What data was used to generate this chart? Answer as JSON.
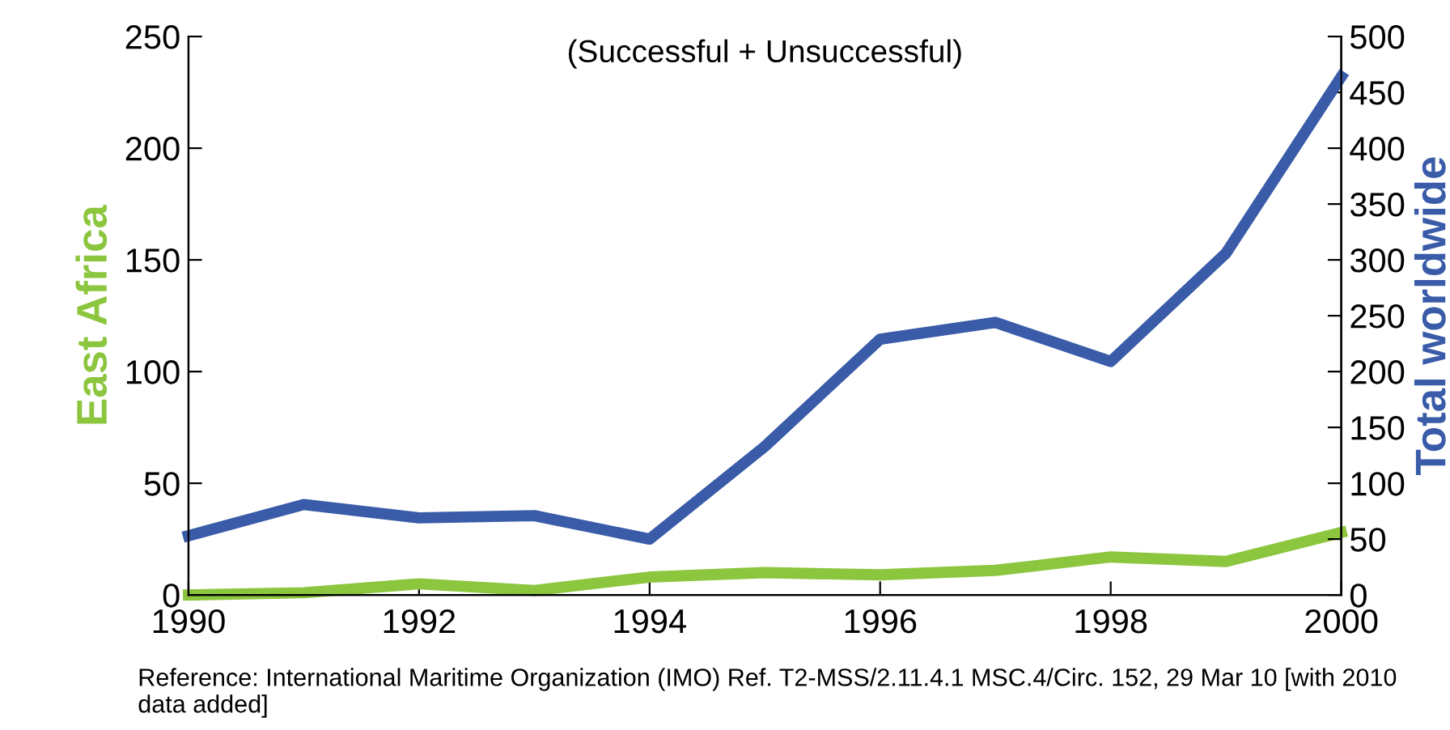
{
  "chart_data": {
    "type": "line",
    "title": "(Successful + Unsuccessful)",
    "ylabel": "East Africa",
    "y2label": "Total worldwide",
    "x": [
      1990,
      1991,
      1992,
      1993,
      1994,
      1995,
      1996,
      1997,
      1998,
      1999,
      2000
    ],
    "series": [
      {
        "color": "#3a5ca8",
        "axis": "y2",
        "values": [
          53,
          81,
          69,
          71,
          50,
          133,
          229,
          244,
          209,
          306,
          464
        ]
      },
      {
        "color": "#8cc63f",
        "values": [
          0,
          1,
          5,
          2,
          8,
          10,
          9,
          11,
          17,
          15,
          28
        ]
      }
    ],
    "xlim": [
      1990,
      2000
    ],
    "xticks": [
      1990,
      1992,
      1994,
      1996,
      1998,
      2000
    ],
    "ylim": [
      0,
      250
    ],
    "yticks": [
      0,
      50,
      100,
      150,
      200,
      250
    ],
    "y2lim": [
      0,
      500
    ],
    "y2ticks": [
      0,
      50,
      100,
      150,
      200,
      250,
      300,
      350,
      400,
      450,
      500
    ],
    "grid": false,
    "legend": false,
    "marker": "none",
    "line_style": "solid",
    "annotations": [
      "Reference: International Maritime Organization (IMO) Ref. T2-MSS/2.11.4.1 MSC.4/Circ. 152, 29 Mar 10 [with 2010 data added]"
    ]
  }
}
